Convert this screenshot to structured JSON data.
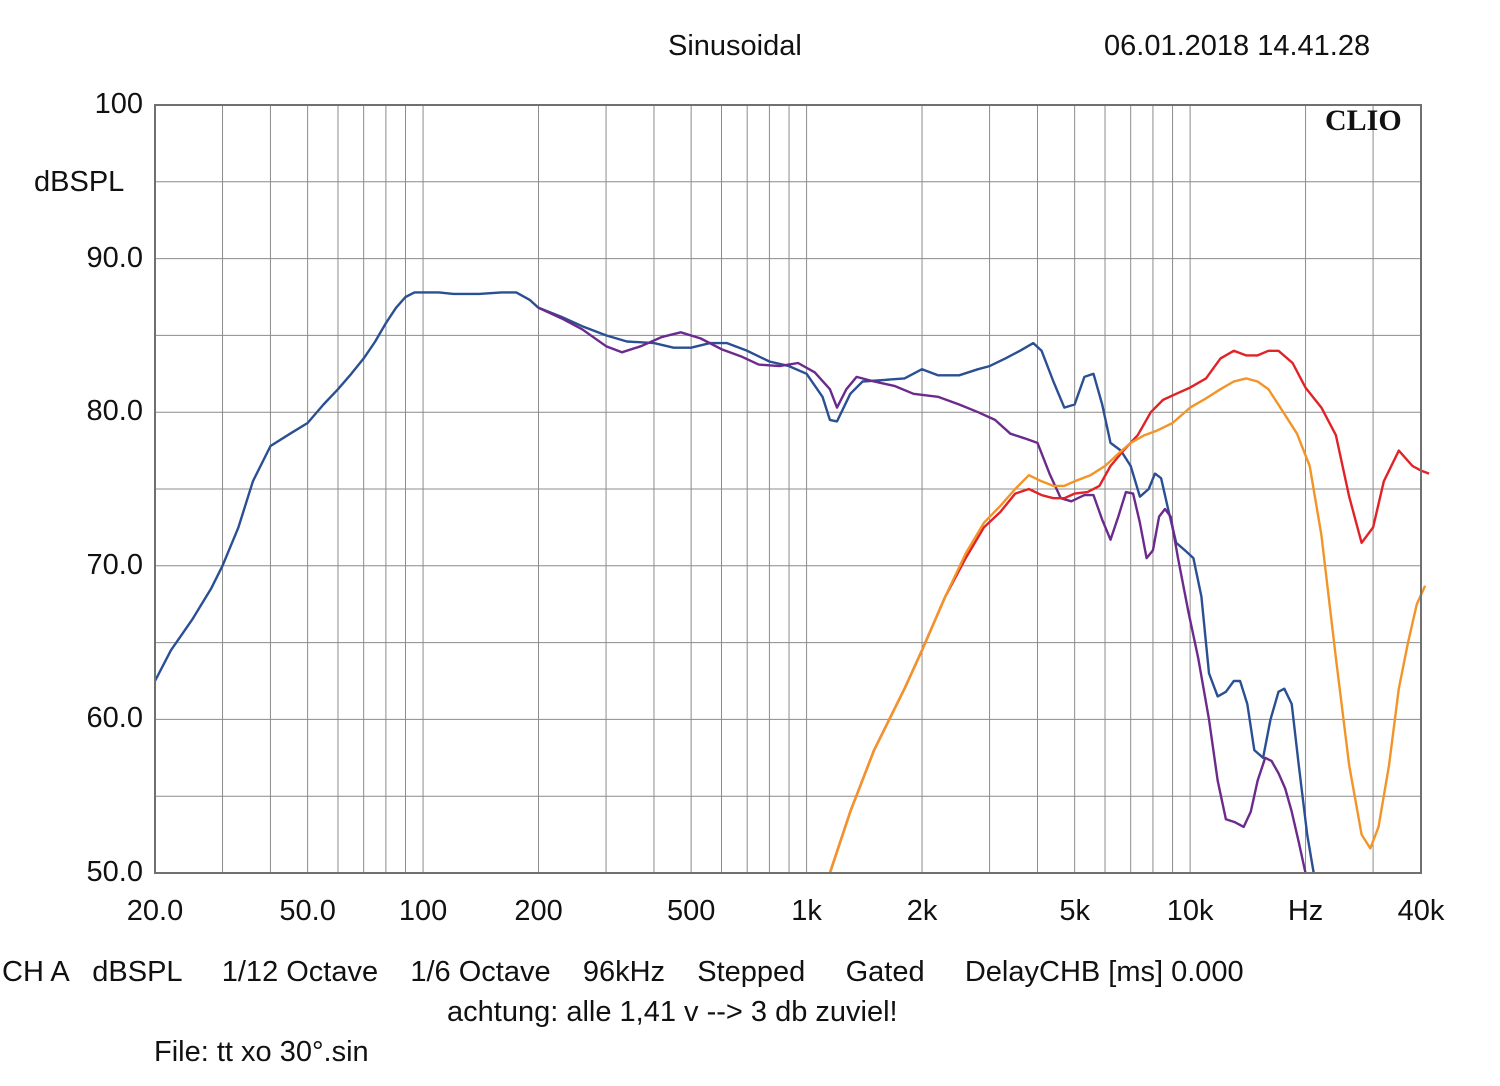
{
  "chart_data": {
    "type": "line",
    "title": "Sinusoidal",
    "timestamp": "06.01.2018 14.41.28",
    "brand": "CLIO",
    "ylabel": "dBSPL",
    "xlabel": "Hz",
    "xscale": "log",
    "xlim": [
      20,
      40000
    ],
    "ylim": [
      50,
      100
    ],
    "grid": true,
    "y_ticks": [
      {
        "value": 100,
        "label": "100"
      },
      {
        "value": 90,
        "label": "90.0"
      },
      {
        "value": 80,
        "label": "80.0"
      },
      {
        "value": 70,
        "label": "70.0"
      },
      {
        "value": 60,
        "label": "60.0"
      },
      {
        "value": 50,
        "label": "50.0"
      }
    ],
    "x_ticks": [
      {
        "value": 20,
        "label": "20.0"
      },
      {
        "value": 50,
        "label": "50.0"
      },
      {
        "value": 100,
        "label": "100"
      },
      {
        "value": 200,
        "label": "200"
      },
      {
        "value": 500,
        "label": "500"
      },
      {
        "value": 1000,
        "label": "1k"
      },
      {
        "value": 2000,
        "label": "2k"
      },
      {
        "value": 5000,
        "label": "5k"
      },
      {
        "value": 10000,
        "label": "10k"
      },
      {
        "value": 20000,
        "label": "Hz"
      },
      {
        "value": 40000,
        "label": "40k"
      }
    ],
    "series": [
      {
        "name": "blue",
        "color": "#2a4f93",
        "points": [
          [
            20,
            62.5
          ],
          [
            22,
            64.5
          ],
          [
            25,
            66.5
          ],
          [
            28,
            68.5
          ],
          [
            30,
            70
          ],
          [
            33,
            72.5
          ],
          [
            36,
            75.5
          ],
          [
            40,
            77.8
          ],
          [
            45,
            78.6
          ],
          [
            50,
            79.3
          ],
          [
            55,
            80.5
          ],
          [
            60,
            81.5
          ],
          [
            65,
            82.5
          ],
          [
            70,
            83.5
          ],
          [
            75,
            84.6
          ],
          [
            80,
            85.8
          ],
          [
            85,
            86.8
          ],
          [
            90,
            87.5
          ],
          [
            95,
            87.8
          ],
          [
            100,
            87.8
          ],
          [
            110,
            87.8
          ],
          [
            120,
            87.7
          ],
          [
            140,
            87.7
          ],
          [
            160,
            87.8
          ],
          [
            175,
            87.8
          ],
          [
            190,
            87.3
          ],
          [
            200,
            86.8
          ],
          [
            230,
            86.2
          ],
          [
            260,
            85.6
          ],
          [
            300,
            85
          ],
          [
            340,
            84.6
          ],
          [
            400,
            84.5
          ],
          [
            450,
            84.2
          ],
          [
            500,
            84.2
          ],
          [
            560,
            84.5
          ],
          [
            620,
            84.5
          ],
          [
            700,
            84
          ],
          [
            800,
            83.3
          ],
          [
            900,
            83
          ],
          [
            1000,
            82.5
          ],
          [
            1100,
            81
          ],
          [
            1150,
            79.5
          ],
          [
            1200,
            79.4
          ],
          [
            1300,
            81.2
          ],
          [
            1400,
            82
          ],
          [
            1600,
            82.1
          ],
          [
            1800,
            82.2
          ],
          [
            2000,
            82.8
          ],
          [
            2200,
            82.4
          ],
          [
            2500,
            82.4
          ],
          [
            2800,
            82.8
          ],
          [
            3000,
            83
          ],
          [
            3300,
            83.5
          ],
          [
            3600,
            84
          ],
          [
            3900,
            84.5
          ],
          [
            4100,
            84
          ],
          [
            4400,
            82
          ],
          [
            4700,
            80.3
          ],
          [
            5000,
            80.5
          ],
          [
            5300,
            82.3
          ],
          [
            5600,
            82.5
          ],
          [
            5900,
            80.5
          ],
          [
            6200,
            78
          ],
          [
            6600,
            77.5
          ],
          [
            7000,
            76.5
          ],
          [
            7400,
            74.5
          ],
          [
            7800,
            75
          ],
          [
            8100,
            76
          ],
          [
            8400,
            75.7
          ],
          [
            8800,
            73.5
          ],
          [
            9200,
            71.5
          ],
          [
            9700,
            71
          ],
          [
            10200,
            70.5
          ],
          [
            10700,
            68
          ],
          [
            11200,
            63
          ],
          [
            11800,
            61.5
          ],
          [
            12400,
            61.8
          ],
          [
            13000,
            62.5
          ],
          [
            13500,
            62.5
          ],
          [
            14100,
            61
          ],
          [
            14700,
            58
          ],
          [
            15500,
            57.5
          ],
          [
            16200,
            60
          ],
          [
            17000,
            61.8
          ],
          [
            17600,
            62
          ],
          [
            18400,
            61
          ],
          [
            19200,
            57
          ],
          [
            20200,
            52.5
          ],
          [
            21000,
            50
          ]
        ]
      },
      {
        "name": "purple",
        "color": "#6b2a8c",
        "points": [
          [
            200,
            86.8
          ],
          [
            230,
            86.1
          ],
          [
            260,
            85.4
          ],
          [
            300,
            84.3
          ],
          [
            330,
            83.9
          ],
          [
            370,
            84.3
          ],
          [
            420,
            84.9
          ],
          [
            470,
            85.2
          ],
          [
            530,
            84.8
          ],
          [
            600,
            84.1
          ],
          [
            680,
            83.6
          ],
          [
            750,
            83.1
          ],
          [
            850,
            83
          ],
          [
            950,
            83.2
          ],
          [
            1050,
            82.6
          ],
          [
            1150,
            81.5
          ],
          [
            1200,
            80.3
          ],
          [
            1270,
            81.5
          ],
          [
            1350,
            82.3
          ],
          [
            1500,
            82
          ],
          [
            1700,
            81.7
          ],
          [
            1900,
            81.2
          ],
          [
            2200,
            81
          ],
          [
            2500,
            80.5
          ],
          [
            2800,
            80
          ],
          [
            3100,
            79.5
          ],
          [
            3400,
            78.6
          ],
          [
            3700,
            78.3
          ],
          [
            4000,
            78
          ],
          [
            4300,
            76
          ],
          [
            4600,
            74.4
          ],
          [
            4900,
            74.2
          ],
          [
            5300,
            74.6
          ],
          [
            5600,
            74.6
          ],
          [
            5900,
            73
          ],
          [
            6200,
            71.7
          ],
          [
            6500,
            73.2
          ],
          [
            6800,
            74.8
          ],
          [
            7100,
            74.7
          ],
          [
            7400,
            72.8
          ],
          [
            7700,
            70.5
          ],
          [
            8000,
            71
          ],
          [
            8300,
            73.2
          ],
          [
            8600,
            73.7
          ],
          [
            8900,
            73.2
          ],
          [
            9300,
            70.5
          ],
          [
            9900,
            67
          ],
          [
            10500,
            64
          ],
          [
            11200,
            60
          ],
          [
            11800,
            56
          ],
          [
            12400,
            53.5
          ],
          [
            13100,
            53.3
          ],
          [
            13800,
            53
          ],
          [
            14400,
            54
          ],
          [
            15000,
            56
          ],
          [
            15700,
            57.5
          ],
          [
            16300,
            57.3
          ],
          [
            17000,
            56.5
          ],
          [
            17700,
            55.5
          ],
          [
            18400,
            54
          ],
          [
            19200,
            52
          ],
          [
            20000,
            50
          ]
        ]
      },
      {
        "name": "red",
        "color": "#e12226",
        "points": [
          [
            1150,
            50
          ],
          [
            1300,
            54
          ],
          [
            1500,
            58
          ],
          [
            1800,
            62
          ],
          [
            2000,
            64.5
          ],
          [
            2300,
            68
          ],
          [
            2600,
            70.5
          ],
          [
            2900,
            72.5
          ],
          [
            3200,
            73.5
          ],
          [
            3500,
            74.7
          ],
          [
            3800,
            75
          ],
          [
            4100,
            74.6
          ],
          [
            4400,
            74.4
          ],
          [
            4700,
            74.4
          ],
          [
            5000,
            74.7
          ],
          [
            5400,
            74.8
          ],
          [
            5800,
            75.2
          ],
          [
            6200,
            76.5
          ],
          [
            6700,
            77.5
          ],
          [
            7300,
            78.5
          ],
          [
            7900,
            80
          ],
          [
            8500,
            80.8
          ],
          [
            9200,
            81.2
          ],
          [
            10000,
            81.6
          ],
          [
            11000,
            82.2
          ],
          [
            12000,
            83.5
          ],
          [
            13000,
            84
          ],
          [
            14000,
            83.7
          ],
          [
            15000,
            83.7
          ],
          [
            16000,
            84
          ],
          [
            17000,
            84
          ],
          [
            18500,
            83.2
          ],
          [
            20000,
            81.6
          ],
          [
            22000,
            80.3
          ],
          [
            24000,
            78.5
          ],
          [
            26000,
            74.5
          ],
          [
            28000,
            71.5
          ],
          [
            30000,
            72.5
          ],
          [
            32000,
            75.5
          ],
          [
            35000,
            77.5
          ],
          [
            38000,
            76.5
          ],
          [
            40000,
            76.2
          ],
          [
            42000,
            76
          ]
        ]
      },
      {
        "name": "orange",
        "color": "#f39429",
        "points": [
          [
            1150,
            50
          ],
          [
            1300,
            54
          ],
          [
            1500,
            58
          ],
          [
            1800,
            62
          ],
          [
            2000,
            64.5
          ],
          [
            2300,
            68
          ],
          [
            2600,
            70.8
          ],
          [
            2900,
            72.8
          ],
          [
            3200,
            73.9
          ],
          [
            3500,
            75
          ],
          [
            3800,
            75.9
          ],
          [
            4100,
            75.5
          ],
          [
            4400,
            75.2
          ],
          [
            4700,
            75.2
          ],
          [
            5000,
            75.5
          ],
          [
            5500,
            75.9
          ],
          [
            6000,
            76.5
          ],
          [
            6500,
            77.3
          ],
          [
            7000,
            78
          ],
          [
            7600,
            78.5
          ],
          [
            8200,
            78.8
          ],
          [
            9000,
            79.3
          ],
          [
            10000,
            80.3
          ],
          [
            11000,
            80.9
          ],
          [
            12000,
            81.5
          ],
          [
            13000,
            82
          ],
          [
            14000,
            82.2
          ],
          [
            15000,
            82
          ],
          [
            16000,
            81.5
          ],
          [
            17500,
            80
          ],
          [
            19000,
            78.6
          ],
          [
            20500,
            76.5
          ],
          [
            22000,
            72
          ],
          [
            24000,
            64
          ],
          [
            26000,
            57
          ],
          [
            28000,
            52.5
          ],
          [
            29500,
            51.6
          ],
          [
            31000,
            53
          ],
          [
            33000,
            57
          ],
          [
            35000,
            62
          ],
          [
            37000,
            65
          ],
          [
            39000,
            67.5
          ],
          [
            41000,
            68.7
          ]
        ]
      }
    ]
  },
  "footer": {
    "line1": "CH A   dBSPL     1/12 Octave    1/6 Octave    96kHz    Stepped     Gated     DelayCHB [ms] 0.000",
    "line2": "achtung: alle 1,41 v --> 3 db zuviel!",
    "line3": "File: tt xo 30°.sin"
  }
}
